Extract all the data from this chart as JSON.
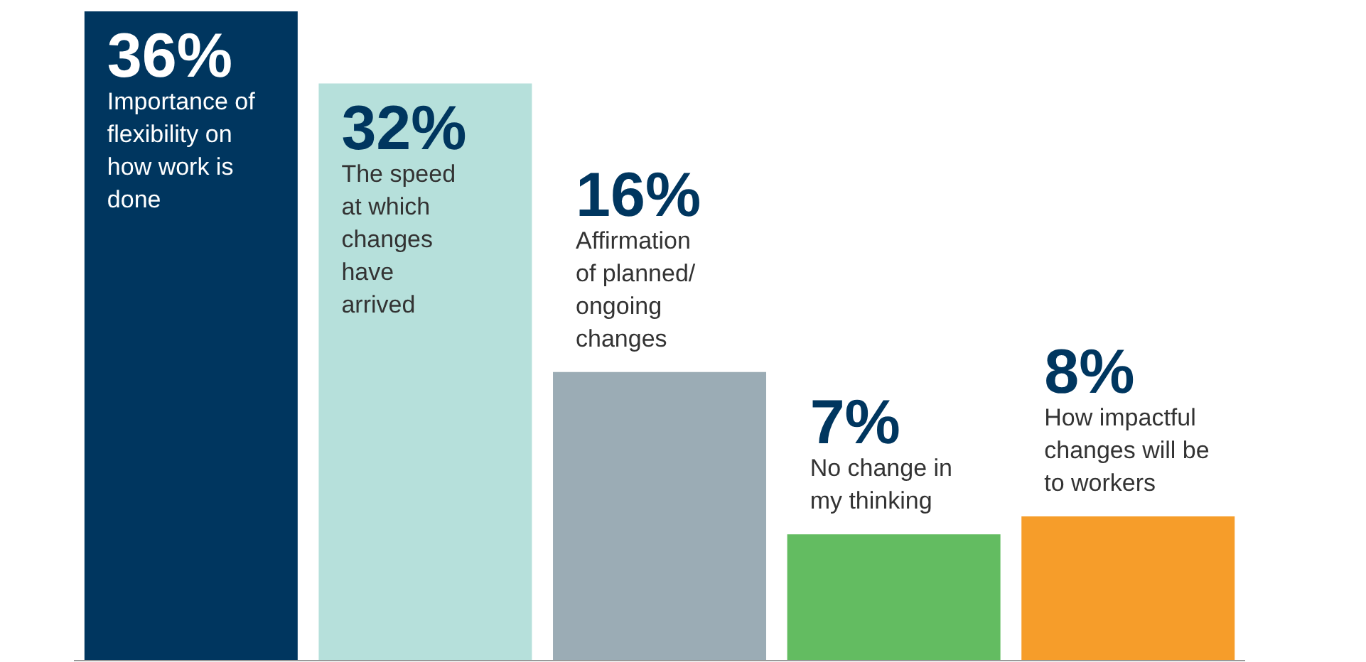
{
  "chart_data": {
    "type": "bar",
    "categories": [
      "Importance of flexibility on how work is done",
      "The speed at which changes have arrived",
      "Affirmation of planned/ ongoing changes",
      "No change in my thinking",
      "How impactful changes will be to workers"
    ],
    "values": [
      36,
      32,
      16,
      7,
      8
    ],
    "value_labels": [
      "36%",
      "32%",
      "16%",
      "7%",
      "8%"
    ],
    "colors": [
      "#00365f",
      "#b6e0db",
      "#9bacb5",
      "#63bc61",
      "#f69d2a"
    ],
    "ylim": [
      0,
      36
    ]
  }
}
